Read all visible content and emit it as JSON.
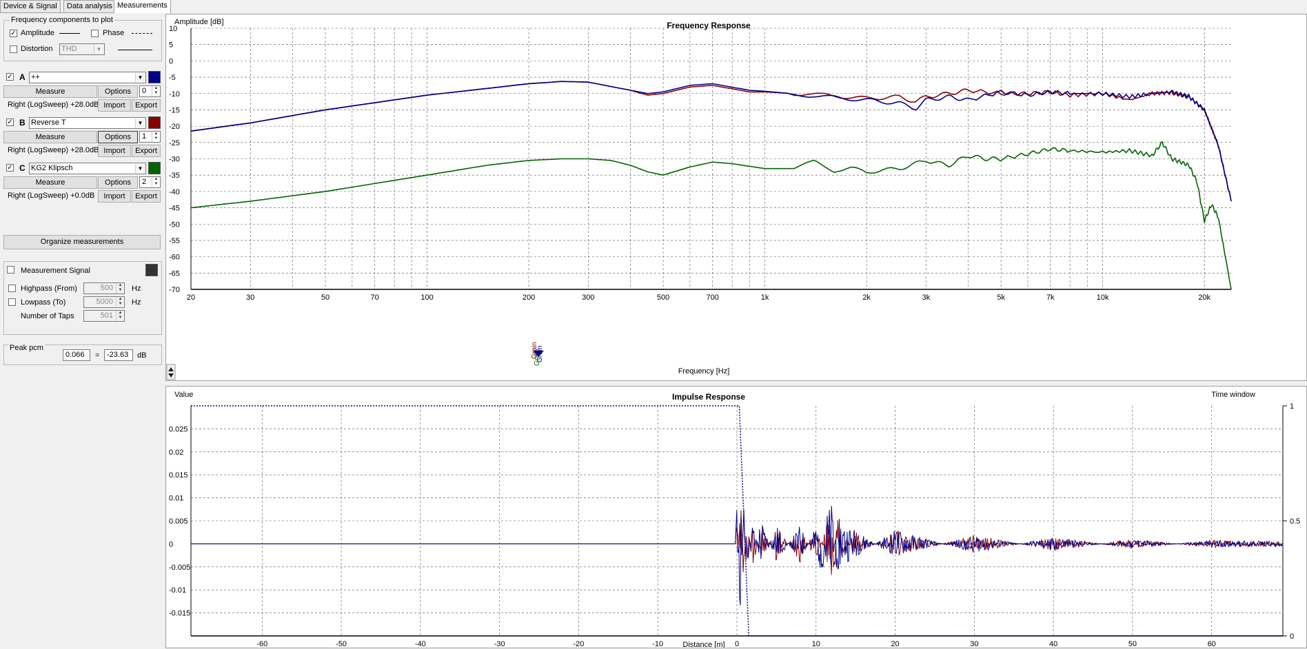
{
  "tabs": [
    {
      "label": "Device & Signal"
    },
    {
      "label": "Data analysis"
    },
    {
      "label": "Measurements"
    }
  ],
  "freq_components": {
    "title": "Frequency components to plot",
    "amplitude": {
      "label": "Amplitude",
      "checked": true
    },
    "phase": {
      "label": "Phase",
      "checked": false
    },
    "distortion": {
      "label": "Distortion",
      "checked": false,
      "selected": "THD"
    }
  },
  "measurements": [
    {
      "letter": "A",
      "checked": true,
      "name": "++",
      "color": "#00008b",
      "measure_label": "Measure",
      "options_label": "Options",
      "index": "0",
      "info": "Right (LogSweep) +28.0dB",
      "import_label": "Import",
      "export_label": "Export"
    },
    {
      "letter": "B",
      "checked": true,
      "name": "Reverse T",
      "color": "#8b0000",
      "measure_label": "Measure",
      "options_label": "Options",
      "index": "1",
      "info": "Right (LogSweep) +28.0dB",
      "import_label": "Import",
      "export_label": "Export"
    },
    {
      "letter": "C",
      "checked": true,
      "name": "KG2 Klipsch",
      "color": "#006400",
      "measure_label": "Measure",
      "options_label": "Options",
      "index": "2",
      "info": "Right (LogSweep) +0.0dB",
      "import_label": "Import",
      "export_label": "Export"
    }
  ],
  "organize_label": "Organize measurements",
  "signal": {
    "label": "Measurement Signal",
    "checked": false,
    "color": "#333333",
    "highpass_label": "Highpass (From)",
    "highpass_value": "500",
    "lowpass_label": "Lowpass (To)",
    "lowpass_value": "5000",
    "taps_label": "Number of Taps",
    "taps_value": "501",
    "hz": "Hz"
  },
  "peak": {
    "title": "Peak pcm",
    "value": "0.066",
    "eq": "=",
    "db_value": "-23.63",
    "unit": "dB"
  },
  "marker_labels": [
    "Grain",
    "Grain",
    "Grain"
  ],
  "frequency_chart": {
    "title": "Frequency Response",
    "ylabel": "Amplitude [dB]",
    "xlabel": "Frequency [Hz]",
    "y_ticks": [
      "10",
      "5",
      "0",
      "-5",
      "-10",
      "-15",
      "-20",
      "-25",
      "-30",
      "-35",
      "-40",
      "-45",
      "-50",
      "-55",
      "-60",
      "-65",
      "-70"
    ],
    "x_ticks": [
      {
        "f": 20,
        "label": "20"
      },
      {
        "f": 30,
        "label": "30"
      },
      {
        "f": 50,
        "label": "50"
      },
      {
        "f": 70,
        "label": "70"
      },
      {
        "f": 100,
        "label": "100"
      },
      {
        "f": 200,
        "label": "200"
      },
      {
        "f": 300,
        "label": "300"
      },
      {
        "f": 500,
        "label": "500"
      },
      {
        "f": 700,
        "label": "700"
      },
      {
        "f": 1000,
        "label": "1k"
      },
      {
        "f": 2000,
        "label": "2k"
      },
      {
        "f": 3000,
        "label": "3k"
      },
      {
        "f": 5000,
        "label": "5k"
      },
      {
        "f": 7000,
        "label": "7k"
      },
      {
        "f": 10000,
        "label": "10k"
      },
      {
        "f": 20000,
        "label": "20k"
      }
    ]
  },
  "impulse_chart": {
    "title": "Impulse Response",
    "ylabel": "Value",
    "y2label": "Time window",
    "xlabel": "Distance [m]",
    "y_ticks": [
      "0.025",
      "0.02",
      "0.015",
      "0.01",
      "0.005",
      "0",
      "-0.005",
      "-0.01",
      "-0.015"
    ],
    "y2_ticks": [
      "1",
      "0.5",
      "0"
    ],
    "x_ticks": [
      "-60",
      "-50",
      "-40",
      "-30",
      "-20",
      "-10",
      "0",
      "10",
      "20",
      "30",
      "40",
      "50",
      "60"
    ]
  },
  "chart_data": [
    {
      "type": "line",
      "title": "Frequency Response",
      "xlabel": "Frequency [Hz]",
      "ylabel": "Amplitude [dB]",
      "xscale": "log",
      "xlim": [
        20,
        24000
      ],
      "ylim": [
        -70,
        10
      ],
      "grid": true,
      "series": [
        {
          "color": "#00008b",
          "x": [
            20,
            30,
            50,
            100,
            200,
            250,
            300,
            400,
            450,
            500,
            600,
            700,
            900,
            1000,
            1500,
            2000,
            2500,
            2800,
            3000,
            3500,
            4000,
            5000,
            6000,
            7000,
            8000,
            10000,
            12000,
            14000,
            16000,
            17000,
            18000,
            20000,
            22000,
            24000
          ],
          "y": [
            -21.5,
            -19,
            -15,
            -10.5,
            -7,
            -6.3,
            -6.5,
            -9,
            -10,
            -9.5,
            -7.5,
            -7,
            -9,
            -9.3,
            -11,
            -12,
            -13,
            -14.5,
            -12,
            -11,
            -12,
            -9.5,
            -10.5,
            -9.5,
            -10,
            -10,
            -11,
            -10,
            -9.5,
            -10.2,
            -11,
            -15,
            -26,
            -43
          ]
        },
        {
          "color": "#8b0000",
          "x": [
            20,
            30,
            50,
            100,
            200,
            250,
            300,
            400,
            450,
            500,
            600,
            700,
            900,
            1000,
            1500,
            2000,
            2500,
            2800,
            3000,
            3500,
            4000,
            5000,
            6000,
            7000,
            8000,
            10000,
            12000,
            14000,
            16000,
            17000,
            18000,
            20000,
            22000,
            24000
          ],
          "y": [
            -21.5,
            -19,
            -15,
            -10.5,
            -7,
            -6.3,
            -6.5,
            -9,
            -10.5,
            -10,
            -8,
            -7.5,
            -9.5,
            -9.5,
            -10.5,
            -11.5,
            -11,
            -12.5,
            -11,
            -10,
            -9,
            -10,
            -10,
            -9.5,
            -10.5,
            -10,
            -12,
            -10,
            -9.7,
            -10.5,
            -11,
            -15,
            -26,
            -43
          ]
        },
        {
          "color": "#006400",
          "x": [
            20,
            30,
            50,
            100,
            150,
            200,
            250,
            300,
            350,
            400,
            450,
            500,
            600,
            700,
            800,
            1000,
            1200,
            1400,
            1600,
            1800,
            2000,
            2500,
            3000,
            3500,
            4000,
            4500,
            5000,
            6000,
            7000,
            8000,
            10000,
            12000,
            14000,
            15000,
            16000,
            17000,
            18000,
            19000,
            20000,
            21000,
            22000,
            24000
          ],
          "y": [
            -45,
            -43,
            -40,
            -35,
            -32,
            -30.5,
            -30,
            -30,
            -30.5,
            -32,
            -34,
            -35,
            -32.5,
            -31,
            -31.5,
            -33,
            -33,
            -31,
            -33.5,
            -33,
            -34,
            -33,
            -30.5,
            -32,
            -29,
            -30,
            -30,
            -28.5,
            -27,
            -27.5,
            -28,
            -27.5,
            -29,
            -25,
            -30,
            -31,
            -32,
            -37,
            -49,
            -44,
            -48,
            -70
          ]
        }
      ]
    },
    {
      "type": "line",
      "title": "Impulse Response",
      "xlabel": "Distance [m]",
      "ylabel": "Value",
      "xlim": [
        -69,
        69
      ],
      "ylim": [
        -0.02,
        0.03
      ],
      "y2lim": [
        0,
        1
      ],
      "grid": true,
      "series": [
        {
          "name": "Time window",
          "color": "#00008b",
          "style": "dotted",
          "x": [
            -69,
            0,
            0.3,
            1.5,
            69
          ],
          "y2": [
            1,
            1,
            1,
            0,
            0
          ]
        },
        {
          "color": "#8b0000",
          "x": [
            -69,
            -0.2,
            0.1,
            0.4,
            0.8,
            1.2,
            2,
            3,
            5,
            8,
            10,
            12.3,
            12.6,
            15,
            20,
            30,
            40,
            50,
            60,
            69
          ],
          "y": [
            0,
            0,
            0.014,
            -0.018,
            0.01,
            -0.008,
            0.006,
            -0.005,
            0.004,
            -0.004,
            0.004,
            -0.01,
            0.006,
            -0.003,
            0.003,
            -0.002,
            0.0015,
            -0.001,
            0.0008,
            0.0005
          ]
        },
        {
          "color": "#00008b",
          "x": [
            -69,
            -0.2,
            0.1,
            0.4,
            0.8,
            1.2,
            2,
            3,
            5,
            8,
            10,
            12.2,
            12.5,
            15,
            20,
            30,
            40,
            50,
            60,
            69
          ],
          "y": [
            0,
            0,
            0.016,
            -0.019,
            0.012,
            -0.008,
            0.006,
            -0.006,
            0.004,
            -0.004,
            0.004,
            0.009,
            -0.006,
            -0.003,
            0.003,
            -0.002,
            0.0015,
            -0.001,
            0.0008,
            0.0005
          ]
        }
      ]
    }
  ]
}
